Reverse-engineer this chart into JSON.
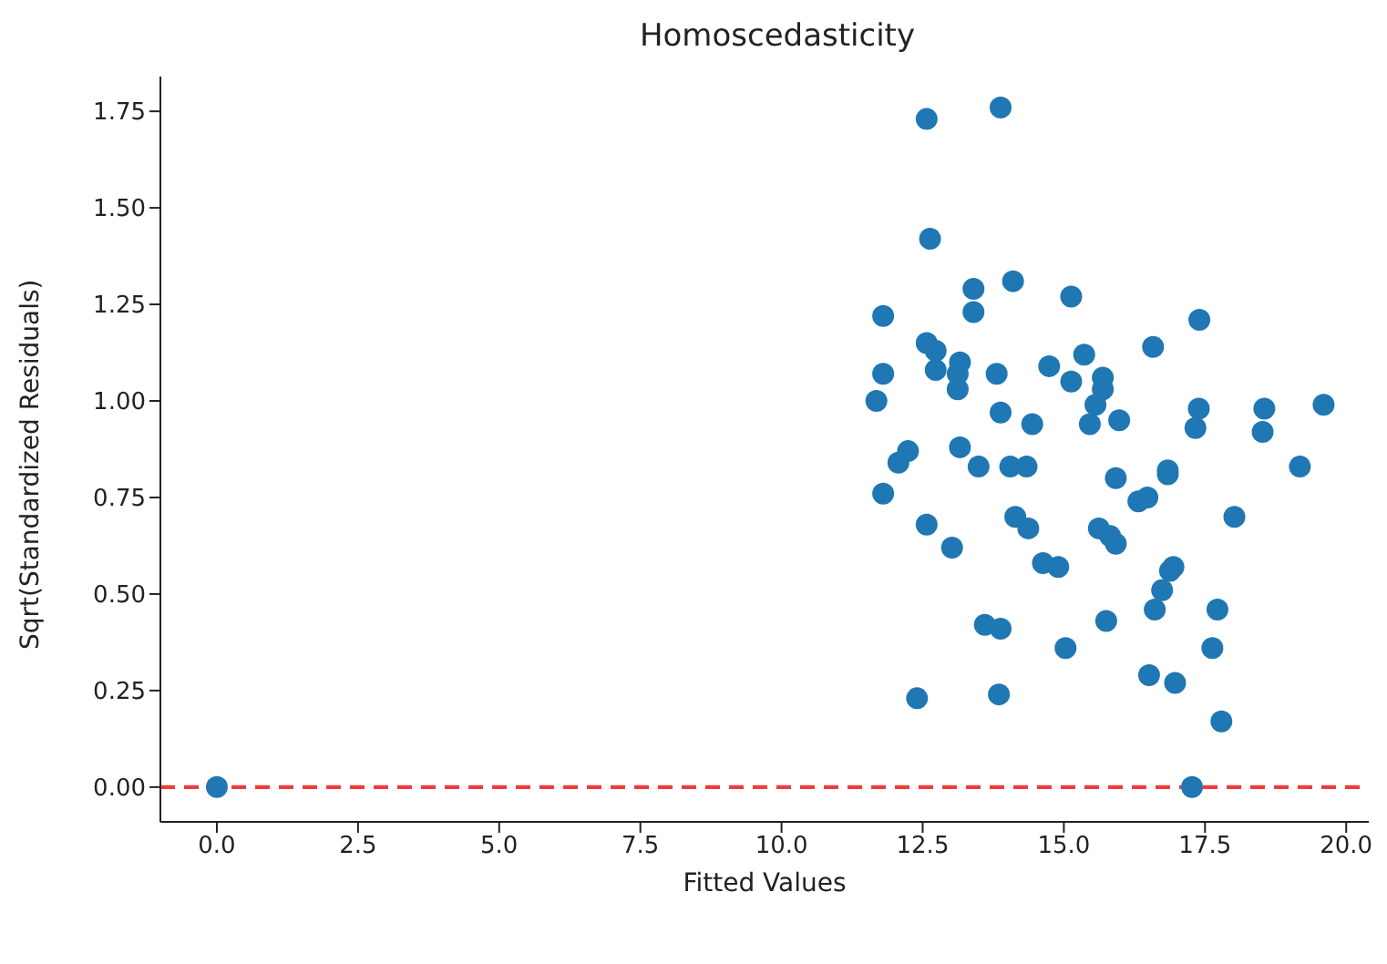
{
  "chart_data": {
    "type": "scatter",
    "title": "Homoscedasticity",
    "xlabel": "Fitted Values",
    "ylabel": "Sqrt(Standardized Residuals)",
    "xlim": [
      -1,
      20.4
    ],
    "ylim": [
      -0.09,
      1.84
    ],
    "xticks": [
      {
        "value": 0,
        "label": "0.0"
      },
      2.5,
      {
        "value": 5,
        "label": "5.0"
      },
      7.5,
      {
        "value": 10,
        "label": "10.0"
      },
      12.5,
      {
        "value": 15,
        "label": "15.0"
      },
      17.5,
      {
        "value": 20,
        "label": "20.0"
      }
    ],
    "yticks": [
      {
        "value": 0,
        "label": "0.00"
      },
      0.25,
      {
        "value": 0.5,
        "label": "0.50"
      },
      0.75,
      {
        "value": 1,
        "label": "1.00"
      },
      1.25,
      {
        "value": 1.5,
        "label": "1.50"
      },
      1.75
    ],
    "grid": false,
    "marker": "circle",
    "ref_lines": [
      {
        "axis": "y",
        "value": 0,
        "color": "#f03c3c",
        "line_style": "dashed"
      }
    ],
    "series": [
      {
        "color": "#1f77b4",
        "x": [
          0,
          12.57,
          13.88,
          12.63,
          14.1,
          15.13,
          13.4,
          13.4,
          11.8,
          17.4,
          12.57,
          12.73,
          12.73,
          13.12,
          13.16,
          11.8,
          11.68,
          13.81,
          14.74,
          15.36,
          15.13,
          15.69,
          15.69,
          15.98,
          15.56,
          15.46,
          13.12,
          13.88,
          14.44,
          16.58,
          17.39,
          17.33,
          18.55,
          18.52,
          19.6,
          19.18,
          12.07,
          12.24,
          13.16,
          13.49,
          14.05,
          14.34,
          15.92,
          16.84,
          16.84,
          16.48,
          16.32,
          11.8,
          12.57,
          14.14,
          14.37,
          18.02,
          13.02,
          15.62,
          15.82,
          15.92,
          16.61,
          16.74,
          16.88,
          16.94,
          14.63,
          14.9,
          13.6,
          13.88,
          17.72,
          15.75,
          15.03,
          17.63,
          16.51,
          16.97,
          13.85,
          12.4,
          17.79,
          17.27
        ],
        "values": [
          0,
          1.73,
          1.76,
          1.42,
          1.31,
          1.27,
          1.29,
          1.23,
          1.22,
          1.21,
          1.15,
          1.13,
          1.08,
          1.07,
          1.1,
          1.07,
          1.0,
          1.07,
          1.09,
          1.12,
          1.05,
          1.06,
          1.03,
          0.95,
          0.99,
          0.94,
          1.03,
          0.97,
          0.94,
          1.14,
          0.98,
          0.93,
          0.98,
          0.92,
          0.99,
          0.83,
          0.84,
          0.87,
          0.88,
          0.83,
          0.83,
          0.83,
          0.8,
          0.82,
          0.81,
          0.75,
          0.74,
          0.76,
          0.68,
          0.7,
          0.67,
          0.7,
          0.62,
          0.67,
          0.65,
          0.63,
          0.46,
          0.51,
          0.56,
          0.57,
          0.58,
          0.57,
          0.42,
          0.41,
          0.46,
          0.43,
          0.36,
          0.36,
          0.29,
          0.27,
          0.24,
          0.23,
          0.17,
          0
        ]
      }
    ]
  }
}
